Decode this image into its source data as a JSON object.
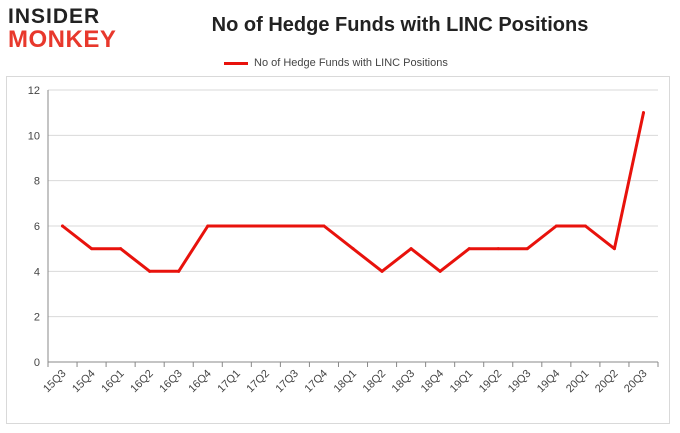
{
  "brand": {
    "line1": "INSIDER",
    "line2": "MONKEY"
  },
  "colors": {
    "line": "#e8120c",
    "grid": "#d9d9d9",
    "axis": "#888888",
    "text": "#444444",
    "brand_red": "#e8382c",
    "brand_dark": "#222222"
  },
  "chart_data": {
    "type": "line",
    "title": "No of Hedge Funds with LINC Positions",
    "xlabel": "",
    "ylabel": "",
    "categories": [
      "15Q3",
      "15Q4",
      "16Q1",
      "16Q2",
      "16Q3",
      "16Q4",
      "17Q1",
      "17Q2",
      "17Q3",
      "17Q4",
      "18Q1",
      "18Q2",
      "18Q3",
      "18Q4",
      "19Q1",
      "19Q2",
      "19Q3",
      "19Q4",
      "20Q1",
      "20Q2",
      "20Q3"
    ],
    "series": [
      {
        "name": "No of Hedge Funds with LINC Positions",
        "values": [
          6,
          5,
          5,
          4,
          4,
          6,
          6,
          6,
          6,
          6,
          5,
          4,
          5,
          4,
          5,
          5,
          5,
          6,
          6,
          5,
          11
        ]
      }
    ],
    "ylim": [
      0,
      12
    ],
    "yticks": [
      0,
      2,
      4,
      6,
      8,
      10,
      12
    ],
    "grid": true,
    "legend": "top-center"
  }
}
